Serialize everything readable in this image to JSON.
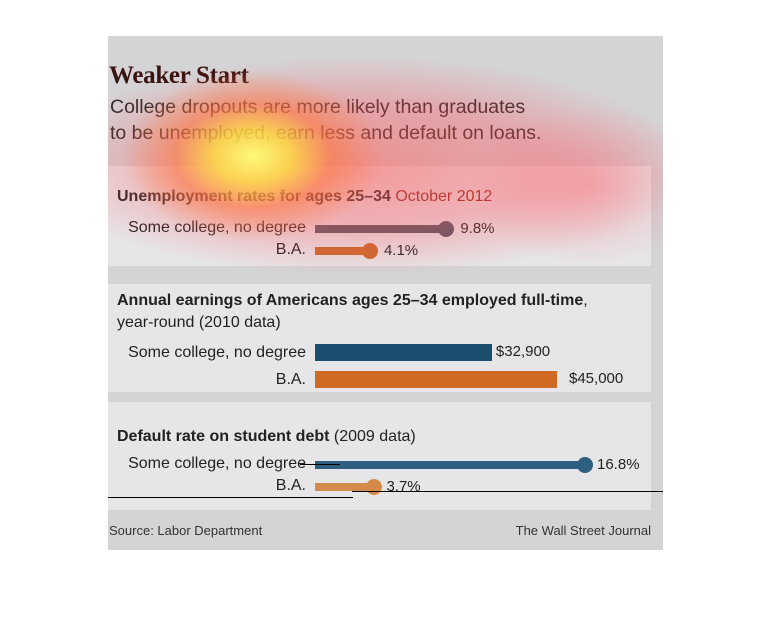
{
  "header": {
    "title": "Weaker Start",
    "subtitle_line1": "College dropouts are more likely than graduates",
    "subtitle_line2": "to be unemployed, earn less and default on loans."
  },
  "panels": {
    "unemployment": {
      "heading_bold": "Unemployment rates for ages 25–34",
      "heading_rest": " October 2012",
      "rows": [
        {
          "label": "Some college, no degree",
          "value_label": "9.8%"
        },
        {
          "label": "B.A.",
          "value_label": "4.1%"
        }
      ]
    },
    "earnings": {
      "heading_bold": "Annual earnings of Americans ages 25–34 employed full-time",
      "heading_rest": ",",
      "heading_line2": "year-round (2010 data)",
      "rows": [
        {
          "label": "Some college, no degree",
          "value_label": "$32,900"
        },
        {
          "label": "B.A.",
          "value_label": "$45,000"
        }
      ]
    },
    "default": {
      "heading_bold": "Default rate on student debt",
      "heading_rest": " (2009 data)",
      "rows": [
        {
          "label": "Some college, no degree",
          "value_label": "16.8%"
        },
        {
          "label": "B.A.",
          "value_label": "3.7%"
        }
      ]
    }
  },
  "footer": {
    "source": "Source: Labor Department",
    "credit": "The Wall Street Journal"
  },
  "colors": {
    "some_college": "#1b4e6e",
    "ba": "#d06a22",
    "unemp_some": "#4f5a66",
    "unemp_ba": "#c86a2b",
    "default_some": "#2d5f80",
    "default_ba": "#d48a4a"
  },
  "chart_data": [
    {
      "type": "bar",
      "title": "Unemployment rates for ages 25–34 October 2012",
      "categories": [
        "Some college, no degree",
        "B.A."
      ],
      "values": [
        9.8,
        4.1
      ],
      "unit": "%"
    },
    {
      "type": "bar",
      "title": "Annual earnings of Americans ages 25–34 employed full-time, year-round (2010 data)",
      "categories": [
        "Some college, no degree",
        "B.A."
      ],
      "values": [
        32900,
        45000
      ],
      "unit": "$"
    },
    {
      "type": "bar",
      "title": "Default rate on student debt (2009 data)",
      "categories": [
        "Some college, no degree",
        "B.A."
      ],
      "values": [
        16.8,
        3.7
      ],
      "unit": "%"
    }
  ]
}
